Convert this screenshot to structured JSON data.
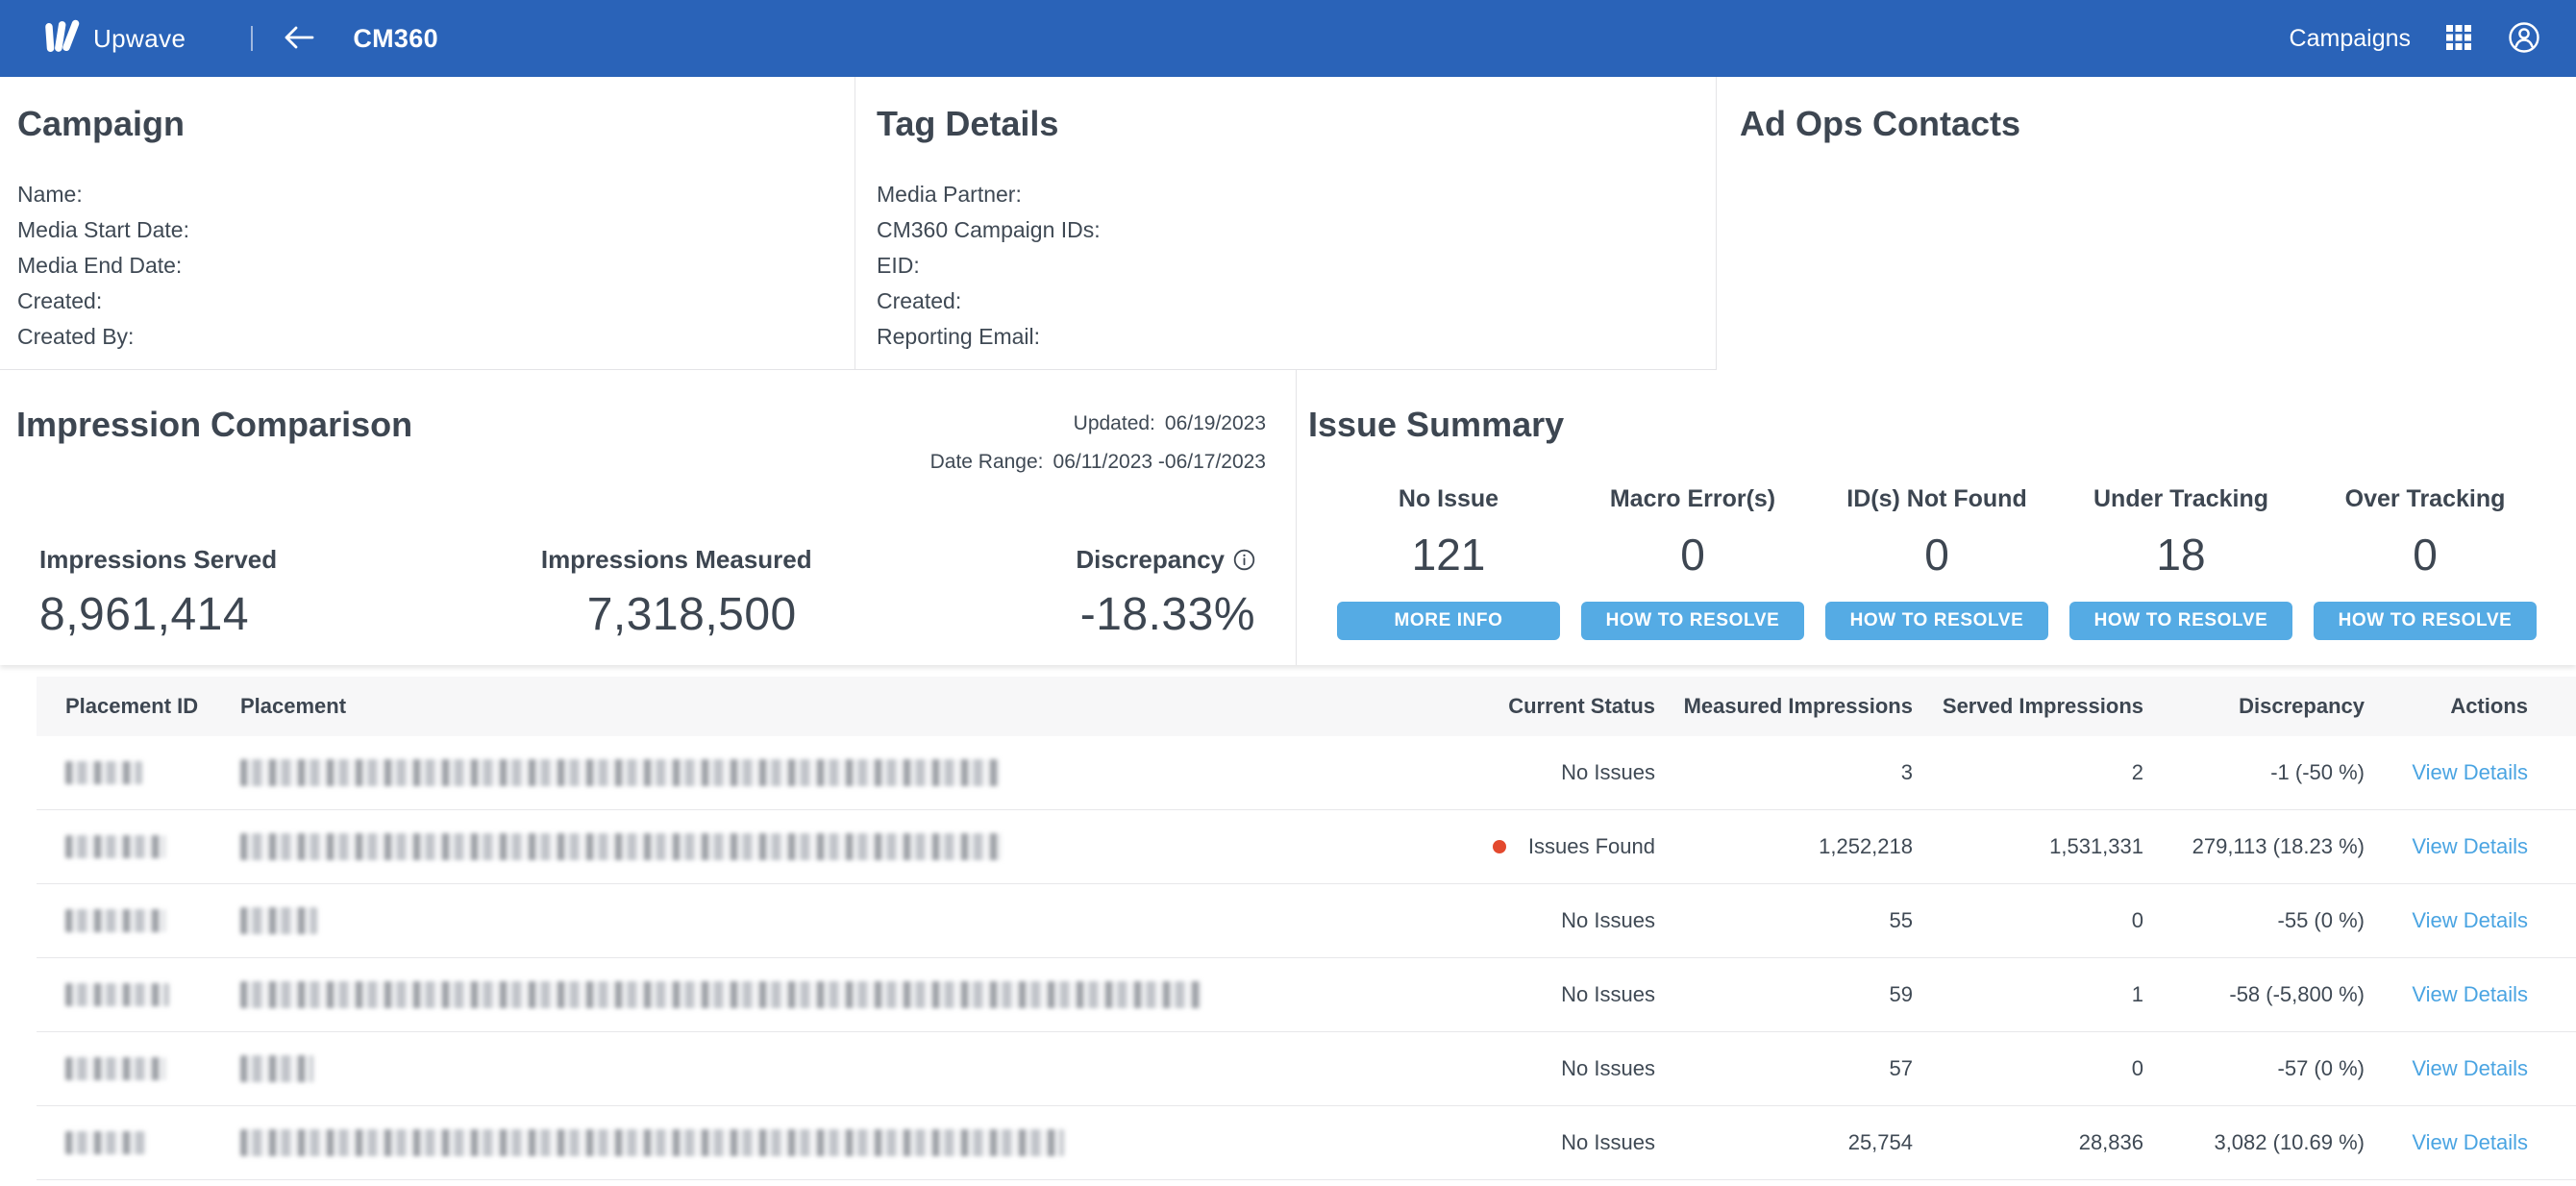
{
  "nav": {
    "brand": "Upwave",
    "title": "CM360",
    "campaigns_label": "Campaigns"
  },
  "panels": {
    "campaign": {
      "title": "Campaign",
      "fields": [
        "Name:",
        "Media Start Date:",
        "Media End Date:",
        "Created:",
        "Created By:"
      ]
    },
    "tag_details": {
      "title": "Tag Details",
      "fields": [
        "Media Partner:",
        "CM360 Campaign IDs:",
        "EID:",
        "Created:",
        "Reporting Email:"
      ]
    },
    "ad_ops": {
      "title": "Ad Ops Contacts"
    }
  },
  "impression_comparison": {
    "title": "Impression Comparison",
    "updated_label": "Updated:",
    "updated_value": "06/19/2023",
    "date_range_label": "Date Range:",
    "date_range_value": "06/11/2023 -06/17/2023",
    "metrics": [
      {
        "label": "Impressions Served",
        "value": "8,961,414",
        "has_info_icon": false
      },
      {
        "label": "Impressions Measured",
        "value": "7,318,500",
        "has_info_icon": false
      },
      {
        "label": "Discrepancy",
        "value": "-18.33%",
        "has_info_icon": true
      }
    ]
  },
  "issue_summary": {
    "title": "Issue Summary",
    "stats": [
      {
        "label": "No Issue",
        "value": "121",
        "button": "MORE INFO"
      },
      {
        "label": "Macro Error(s)",
        "value": "0",
        "button": "HOW TO RESOLVE"
      },
      {
        "label": "ID(s) Not Found",
        "value": "0",
        "button": "HOW TO RESOLVE"
      },
      {
        "label": "Under Tracking",
        "value": "18",
        "button": "HOW TO RESOLVE"
      },
      {
        "label": "Over Tracking",
        "value": "0",
        "button": "HOW TO RESOLVE"
      }
    ]
  },
  "table": {
    "columns": [
      "Placement ID",
      "Placement",
      "Current Status",
      "Measured Impressions",
      "Served Impressions",
      "Discrepancy",
      "Actions"
    ],
    "rows": [
      {
        "status": "No Issues",
        "issue_dot": false,
        "measured": "3",
        "served": "2",
        "discrepancy": "-1 (-50 %)",
        "action": "View Details",
        "id_redact_w": 80,
        "placement_redact_w": 790
      },
      {
        "status": "Issues Found",
        "issue_dot": true,
        "measured": "1,252,218",
        "served": "1,531,331",
        "discrepancy": "279,113 (18.23 %)",
        "action": "View Details",
        "id_redact_w": 104,
        "placement_redact_w": 792
      },
      {
        "status": "No Issues",
        "issue_dot": false,
        "measured": "55",
        "served": "0",
        "discrepancy": "-55 (0 %)",
        "action": "View Details",
        "id_redact_w": 104,
        "placement_redact_w": 80
      },
      {
        "status": "No Issues",
        "issue_dot": false,
        "measured": "59",
        "served": "1",
        "discrepancy": "-58 (-5,800 %)",
        "action": "View Details",
        "id_redact_w": 108,
        "placement_redact_w": 1000
      },
      {
        "status": "No Issues",
        "issue_dot": false,
        "measured": "57",
        "served": "0",
        "discrepancy": "-57 (0 %)",
        "action": "View Details",
        "id_redact_w": 104,
        "placement_redact_w": 76
      },
      {
        "status": "No Issues",
        "issue_dot": false,
        "measured": "25,754",
        "served": "28,836",
        "discrepancy": "3,082 (10.69 %)",
        "action": "View Details",
        "id_redact_w": 84,
        "placement_redact_w": 857
      }
    ]
  },
  "colors": {
    "nav_blue": "#2a63b8",
    "button_blue": "#55abe4",
    "link_blue": "#4aa4e2",
    "issue_red": "#e3492e"
  }
}
